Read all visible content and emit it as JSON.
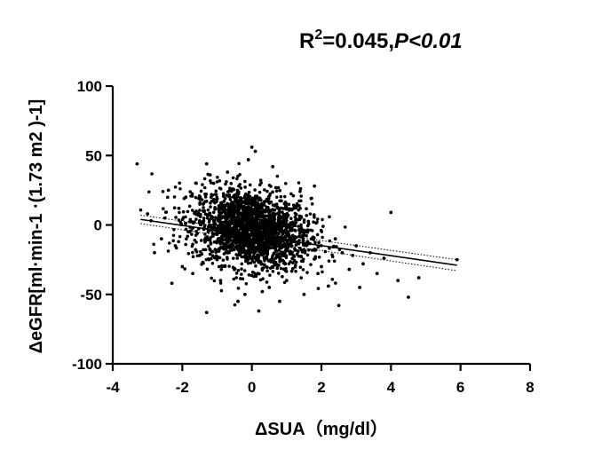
{
  "chart_data": {
    "type": "scatter",
    "title": "",
    "annotation": {
      "r2_label": "R",
      "r2_superscript": "2",
      "r2_value": "=0.045,",
      "p_label": "P",
      "p_value": "<0.01"
    },
    "xlabel": "ΔSUA（mg/dl）",
    "ylabel": "ΔeGFR[ml·min-1 ·(1.73 m2 )-1]",
    "xlim": [
      -4,
      8
    ],
    "ylim": [
      -100,
      100
    ],
    "xticks": [
      -4,
      -2,
      0,
      2,
      4,
      6,
      8
    ],
    "xtick_labels": [
      "-4",
      "-2",
      "0",
      "2",
      "4",
      "6",
      "8"
    ],
    "yticks": [
      -100,
      -50,
      0,
      50,
      100
    ],
    "ytick_labels": [
      "-100",
      "-50",
      "0",
      "50",
      "100"
    ],
    "grid": false,
    "legend": "none",
    "point_color": "#000000",
    "regression": {
      "x": [
        -3.2,
        5.9
      ],
      "y": [
        4,
        -29
      ],
      "ci_upper_y": [
        7,
        -25
      ],
      "ci_lower_y": [
        1,
        -33
      ]
    },
    "points": {
      "x": [
        -3.3,
        -3.0,
        -2.9,
        -2.8,
        -2.6,
        -2.5,
        -2.3,
        -2.2,
        -2.1,
        -2.0,
        -1.9,
        -1.8,
        -1.7,
        -1.6,
        -1.5,
        -1.4,
        -1.3,
        -1.2,
        -1.2,
        -1.0,
        1.0,
        1.2,
        1.4,
        1.6,
        1.8,
        2.0,
        2.2,
        2.4,
        2.6,
        2.8,
        3.0,
        3.2,
        3.4,
        3.6,
        3.8,
        4.0,
        4.2,
        4.5,
        4.8,
        5.9,
        0.0,
        0.1,
        -0.1,
        0.2,
        -1.3,
        -0.4,
        0.5,
        1.5,
        2.5,
        3.1,
        -2.4,
        -1.1,
        0.8,
        1.9,
        2.9,
        -0.7,
        0.3,
        -0.2,
        0.6,
        -0.9
      ],
      "y": [
        44,
        8,
        3,
        -20,
        -10,
        5,
        -42,
        -15,
        12,
        -30,
        20,
        -5,
        -35,
        30,
        -22,
        15,
        -63,
        -18,
        36,
        -25,
        -40,
        -22,
        26,
        -12,
        28,
        -30,
        -44,
        -10,
        -20,
        -32,
        -15,
        -28,
        -20,
        -35,
        -24,
        9,
        -40,
        -52,
        -38,
        -25,
        56,
        53,
        47,
        -62,
        44,
        -55,
        -45,
        -50,
        -58,
        -45,
        25,
        30,
        -55,
        -35,
        -22,
        38,
        -48,
        -50,
        42,
        -40
      ]
    },
    "cluster": {
      "center_x": 0.0,
      "center_y": -3,
      "sd_x": 0.85,
      "sd_y": 14,
      "count": 2100,
      "slope": -3.6
    }
  }
}
